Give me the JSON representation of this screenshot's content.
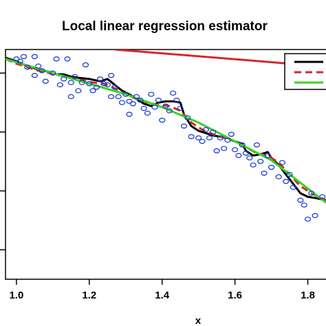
{
  "chart_data": {
    "type": "scatter",
    "title": "Local linear regression estimator",
    "xlabel": "x",
    "ylabel": "",
    "xlim": [
      0.97,
      1.85
    ],
    "ylim": [
      -1.25,
      0.7
    ],
    "x_ticks": [
      1.0,
      1.2,
      1.4,
      1.6,
      1.8
    ],
    "x_tick_labels": [
      "1.0",
      "1.2",
      "1.4",
      "1.6",
      "1.8"
    ],
    "y_ticks": [
      -1.0,
      -0.5,
      0.0,
      0.5
    ],
    "grid": false,
    "legend_position": "top-right",
    "points_color": "#1f3fd0",
    "observations": {
      "x": [
        1.0,
        1.01,
        1.02,
        1.03,
        1.05,
        1.05,
        1.06,
        1.07,
        1.08,
        1.1,
        1.11,
        1.12,
        1.13,
        1.14,
        1.15,
        1.15,
        1.16,
        1.17,
        1.18,
        1.19,
        1.2,
        1.21,
        1.22,
        1.23,
        1.24,
        1.25,
        1.26,
        1.26,
        1.27,
        1.28,
        1.29,
        1.3,
        1.31,
        1.31,
        1.32,
        1.33,
        1.34,
        1.35,
        1.36,
        1.37,
        1.38,
        1.39,
        1.4,
        1.41,
        1.42,
        1.43,
        1.44,
        1.45,
        1.46,
        1.47,
        1.48,
        1.5,
        1.51,
        1.52,
        1.53,
        1.54,
        1.55,
        1.56,
        1.57,
        1.58,
        1.59,
        1.6,
        1.61,
        1.62,
        1.63,
        1.64,
        1.65,
        1.66,
        1.67,
        1.68,
        1.69,
        1.7,
        1.72,
        1.73,
        1.74,
        1.75,
        1.76,
        1.78,
        1.79,
        1.8,
        1.81,
        1.82,
        1.84
      ],
      "y": [
        0.62,
        0.6,
        0.64,
        0.55,
        0.64,
        0.48,
        0.56,
        0.52,
        0.43,
        0.5,
        0.62,
        0.4,
        0.45,
        0.62,
        0.42,
        0.3,
        0.47,
        0.35,
        0.42,
        0.57,
        0.41,
        0.35,
        0.38,
        0.45,
        0.41,
        0.4,
        0.48,
        0.3,
        0.38,
        0.3,
        0.25,
        0.32,
        0.15,
        0.26,
        0.24,
        0.3,
        0.27,
        0.2,
        0.16,
        0.32,
        0.21,
        0.27,
        0.1,
        0.22,
        0.18,
        0.33,
        0.27,
        0.2,
        0.05,
        0.12,
        -0.04,
        -0.05,
        -0.08,
        0.02,
        -0.05,
        0.0,
        -0.16,
        -0.05,
        -0.14,
        -0.07,
        -0.02,
        -0.15,
        -0.2,
        -0.11,
        -0.18,
        -0.22,
        -0.28,
        -0.11,
        -0.25,
        -0.35,
        -0.2,
        -0.3,
        -0.38,
        -0.26,
        -0.42,
        -0.36,
        -0.47,
        -0.58,
        -0.62,
        -0.74,
        -0.52,
        -0.71,
        -0.55
      ]
    },
    "series": [
      {
        "color": "#000000",
        "dash": "solid",
        "x": [
          0.97,
          1.0,
          1.03,
          1.06,
          1.09,
          1.11,
          1.13,
          1.15,
          1.17,
          1.2,
          1.23,
          1.25,
          1.27,
          1.29,
          1.31,
          1.33,
          1.35,
          1.37,
          1.39,
          1.41,
          1.42,
          1.43,
          1.45,
          1.46,
          1.48,
          1.5,
          1.52,
          1.54,
          1.56,
          1.58,
          1.6,
          1.62,
          1.63,
          1.65,
          1.67,
          1.69,
          1.7,
          1.72,
          1.74,
          1.76,
          1.78,
          1.8,
          1.82,
          1.85
        ],
        "y": [
          0.63,
          0.6,
          0.56,
          0.53,
          0.51,
          0.49,
          0.49,
          0.47,
          0.46,
          0.45,
          0.43,
          0.45,
          0.4,
          0.35,
          0.32,
          0.28,
          0.24,
          0.22,
          0.25,
          0.26,
          0.26,
          0.26,
          0.25,
          0.15,
          0.05,
          0.01,
          -0.01,
          -0.03,
          -0.04,
          -0.05,
          -0.08,
          -0.1,
          -0.16,
          -0.2,
          -0.19,
          -0.17,
          -0.22,
          -0.28,
          -0.36,
          -0.44,
          -0.52,
          -0.55,
          -0.56,
          -0.58
        ]
      },
      {
        "color": "#d62728",
        "dash": "dashed",
        "x": [
          0.97,
          1.0,
          1.03,
          1.06,
          1.09,
          1.12,
          1.15,
          1.18,
          1.21,
          1.24,
          1.27,
          1.3,
          1.33,
          1.36,
          1.39,
          1.42,
          1.45,
          1.48,
          1.51,
          1.54,
          1.57,
          1.6,
          1.63,
          1.66,
          1.69,
          1.72,
          1.75,
          1.78,
          1.81,
          1.85
        ],
        "y": [
          0.62,
          0.58,
          0.55,
          0.52,
          0.5,
          0.48,
          0.46,
          0.44,
          0.42,
          0.41,
          0.37,
          0.32,
          0.28,
          0.25,
          0.23,
          0.22,
          0.18,
          0.08,
          0.02,
          -0.02,
          -0.05,
          -0.08,
          -0.13,
          -0.18,
          -0.2,
          -0.26,
          -0.36,
          -0.46,
          -0.52,
          -0.58
        ]
      },
      {
        "color": "#33d61f",
        "dash": "solid",
        "x": [
          0.97,
          1.1,
          1.2,
          1.3,
          1.4,
          1.5,
          1.6,
          1.7,
          1.8,
          1.85
        ],
        "y": [
          0.62,
          0.5,
          0.41,
          0.32,
          0.21,
          0.08,
          -0.08,
          -0.24,
          -0.48,
          -0.6
        ]
      },
      {
        "color": "#d62728",
        "dash": "solid",
        "x": [
          1.27,
          1.83
        ],
        "y": [
          0.7,
          0.56
        ]
      }
    ],
    "legend_entries": [
      {
        "color": "#000000",
        "dash": "solid"
      },
      {
        "color": "#d62728",
        "dash": "dashed"
      },
      {
        "color": "#33d61f",
        "dash": "solid"
      }
    ]
  }
}
